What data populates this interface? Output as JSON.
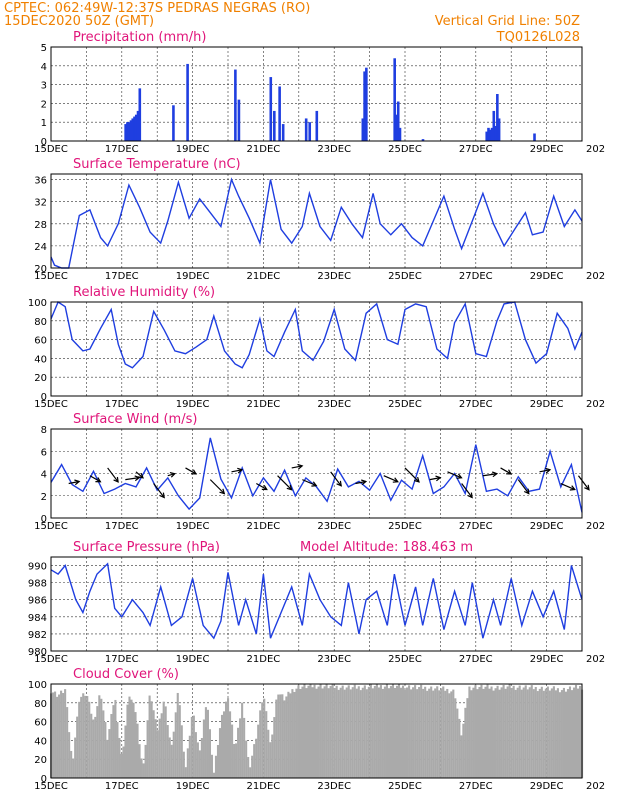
{
  "header": {
    "left1": "CPTEC:  062:49W-12:37S  PEDRAS NEGRAS (RO)",
    "left2": "15DEC2020 50Z (GMT)",
    "right1": "Vertical Grid Line: 50Z",
    "right2": "TQ0126L028"
  },
  "colors": {
    "header": "#f08000",
    "title": "#e0157a",
    "series": "#1f3ee0",
    "cloud": "#aaaaaa",
    "arrow": "#000000"
  },
  "x_axis": {
    "start_day": 15,
    "end_day": 30,
    "tick_labels": [
      "15DEC",
      "17DEC",
      "19DEC",
      "21DEC",
      "23DEC",
      "25DEC",
      "27DEC",
      "29DEC"
    ],
    "tick_days": [
      15,
      17,
      19,
      21,
      23,
      25,
      27,
      29
    ],
    "overlap_label": "202"
  },
  "chart_data": [
    {
      "type": "bar",
      "title": "Precipitation (mm/h)",
      "ylim": [
        0,
        5
      ],
      "yticks": [
        0,
        1,
        2,
        3,
        4,
        5
      ],
      "grid": true,
      "x": [
        17.1,
        17.15,
        17.2,
        17.25,
        17.3,
        17.35,
        17.4,
        17.45,
        17.5,
        18.45,
        18.85,
        20.2,
        20.3,
        21.2,
        21.3,
        21.45,
        21.55,
        22.2,
        22.3,
        22.5,
        23.8,
        23.85,
        23.9,
        24.7,
        24.75,
        24.8,
        24.85,
        25.5,
        27.3,
        27.35,
        27.4,
        27.45,
        27.5,
        27.55,
        27.6,
        27.65,
        28.65
      ],
      "values": [
        0.9,
        1.0,
        1.0,
        1.1,
        1.2,
        1.3,
        1.4,
        1.6,
        2.8,
        1.9,
        4.1,
        3.8,
        2.2,
        3.4,
        1.6,
        2.9,
        0.9,
        1.2,
        1.0,
        1.6,
        1.2,
        3.7,
        3.9,
        4.4,
        1.4,
        2.1,
        0.7,
        0.1,
        0.5,
        0.7,
        0.6,
        0.7,
        1.6,
        0.8,
        2.5,
        1.2,
        0.4
      ]
    },
    {
      "type": "line",
      "title": "Surface Temperature (nC)",
      "ylim": [
        20,
        37
      ],
      "yticks": [
        20,
        24,
        28,
        32,
        36
      ],
      "grid": true,
      "x": [
        15,
        15.1,
        15.3,
        15.5,
        15.8,
        16.1,
        16.4,
        16.6,
        16.9,
        17.2,
        17.5,
        17.8,
        18.1,
        18.3,
        18.6,
        18.9,
        19.2,
        19.5,
        19.8,
        20.1,
        20.3,
        20.6,
        20.9,
        21.2,
        21.5,
        21.8,
        22.1,
        22.3,
        22.6,
        22.9,
        23.2,
        23.5,
        23.8,
        24.1,
        24.3,
        24.6,
        24.9,
        25.2,
        25.5,
        25.8,
        26.1,
        26.4,
        26.6,
        26.9,
        27.2,
        27.5,
        27.8,
        28.1,
        28.4,
        28.6,
        28.9,
        29.2,
        29.5,
        29.8,
        30
      ],
      "values": [
        22,
        20.5,
        20,
        20,
        29.5,
        30.5,
        25.5,
        24,
        28,
        35,
        31,
        26.5,
        24.5,
        28.5,
        35.5,
        29,
        32.5,
        30,
        27.5,
        36,
        33,
        29,
        24.5,
        36,
        27,
        24.5,
        27.5,
        33.5,
        27.5,
        25,
        31,
        28,
        25.5,
        33.5,
        28,
        26,
        28,
        25.5,
        24,
        28.5,
        33,
        27,
        23.5,
        28.5,
        33.5,
        28,
        24,
        27,
        30,
        26,
        26.5,
        33,
        27.5,
        30.5,
        28.5
      ]
    },
    {
      "type": "line",
      "title": "Relative Humidity (%)",
      "ylim": [
        0,
        100
      ],
      "yticks": [
        0,
        20,
        40,
        60,
        80,
        100
      ],
      "grid": true,
      "x": [
        15,
        15.2,
        15.4,
        15.6,
        15.9,
        16.1,
        16.4,
        16.7,
        16.9,
        17.1,
        17.3,
        17.6,
        17.9,
        18.2,
        18.5,
        18.8,
        19.1,
        19.4,
        19.6,
        19.9,
        20.2,
        20.4,
        20.6,
        20.9,
        21.1,
        21.3,
        21.6,
        21.9,
        22.1,
        22.4,
        22.7,
        23.0,
        23.3,
        23.6,
        23.9,
        24.2,
        24.5,
        24.8,
        25.0,
        25.3,
        25.6,
        25.9,
        26.2,
        26.4,
        26.7,
        27.0,
        27.3,
        27.6,
        27.8,
        28.1,
        28.4,
        28.7,
        29.0,
        29.3,
        29.6,
        29.8,
        30
      ],
      "values": [
        82,
        100,
        95,
        60,
        48,
        50,
        72,
        92,
        55,
        34,
        30,
        42,
        90,
        70,
        48,
        45,
        52,
        60,
        85,
        48,
        34,
        30,
        44,
        82,
        48,
        42,
        68,
        92,
        48,
        38,
        58,
        92,
        50,
        38,
        88,
        98,
        60,
        55,
        92,
        98,
        95,
        50,
        40,
        78,
        98,
        45,
        42,
        80,
        98,
        100,
        60,
        35,
        45,
        88,
        72,
        50,
        68
      ]
    },
    {
      "type": "line",
      "title": "Surface Wind (m/s)",
      "ylim": [
        0,
        8
      ],
      "yticks": [
        0,
        2,
        4,
        6,
        8
      ],
      "grid": true,
      "x": [
        15,
        15.3,
        15.6,
        15.9,
        16.2,
        16.5,
        16.8,
        17.1,
        17.4,
        17.7,
        18.0,
        18.3,
        18.6,
        18.9,
        19.2,
        19.5,
        19.8,
        20.1,
        20.4,
        20.7,
        21.0,
        21.3,
        21.6,
        21.9,
        22.2,
        22.5,
        22.8,
        23.1,
        23.4,
        23.7,
        24.0,
        24.3,
        24.6,
        24.9,
        25.2,
        25.5,
        25.8,
        26.1,
        26.4,
        26.7,
        27.0,
        27.3,
        27.6,
        27.9,
        28.2,
        28.5,
        28.8,
        29.1,
        29.4,
        29.7,
        30
      ],
      "values": [
        3.2,
        4.8,
        3,
        2.4,
        4.2,
        2.2,
        2.6,
        3.1,
        2.8,
        4.5,
        2.5,
        3.6,
        2,
        0.8,
        1.8,
        7.2,
        3.5,
        1.8,
        4.5,
        2,
        3.6,
        2.4,
        4.3,
        2,
        3.6,
        2.8,
        1.5,
        4.4,
        2.8,
        3.3,
        2.5,
        4,
        1.6,
        3.4,
        2.6,
        5.6,
        2.2,
        2.8,
        4,
        2.2,
        6.6,
        2.4,
        2.6,
        2,
        3.7,
        2.4,
        2.6,
        6,
        2.8,
        4.8,
        0.5
      ],
      "arrows": [
        [
          15.5,
          15.8
        ],
        [
          16.1,
          16.4
        ],
        [
          16.6,
          16.9
        ],
        [
          17.1,
          17.5
        ],
        [
          17.4,
          17.6
        ],
        [
          17.9,
          18.2
        ],
        [
          18.3,
          18.5
        ],
        [
          18.8,
          19.1
        ],
        [
          19.5,
          19.9
        ],
        [
          20.1,
          20.4
        ],
        [
          20.8,
          21.1
        ],
        [
          21.4,
          21.8
        ],
        [
          21.8,
          22.1
        ],
        [
          22.1,
          22.5
        ],
        [
          22.9,
          23.2
        ],
        [
          23.6,
          23.9
        ],
        [
          24.4,
          24.8
        ],
        [
          25,
          25.4
        ],
        [
          25.7,
          26
        ],
        [
          26.2,
          26.6
        ],
        [
          26.6,
          26.9
        ],
        [
          27.2,
          27.6
        ],
        [
          27.7,
          28
        ],
        [
          28.2,
          28.5
        ],
        [
          28.8,
          29.1
        ],
        [
          29.4,
          29.8
        ],
        [
          29.9,
          30.2
        ]
      ]
    },
    {
      "type": "line",
      "title": "Surface Pressure (hPa)",
      "annotation": "Model Altitude: 188.463  m",
      "ylim": [
        980,
        991
      ],
      "yticks": [
        980,
        982,
        984,
        986,
        988,
        990
      ],
      "grid": true,
      "x": [
        15,
        15.2,
        15.4,
        15.7,
        15.9,
        16.1,
        16.3,
        16.6,
        16.8,
        17.0,
        17.3,
        17.6,
        17.8,
        18.1,
        18.4,
        18.7,
        19.0,
        19.3,
        19.6,
        19.8,
        20.0,
        20.3,
        20.5,
        20.8,
        21.0,
        21.2,
        21.5,
        21.8,
        22.1,
        22.3,
        22.6,
        22.9,
        23.2,
        23.4,
        23.7,
        23.9,
        24.2,
        24.5,
        24.7,
        25.0,
        25.3,
        25.5,
        25.8,
        26.1,
        26.4,
        26.7,
        26.9,
        27.2,
        27.5,
        27.7,
        28.0,
        28.3,
        28.6,
        28.9,
        29.2,
        29.5,
        29.7,
        30
      ],
      "values": [
        989.5,
        989,
        990,
        986,
        984.5,
        987,
        989,
        990.2,
        985,
        984,
        986,
        984.5,
        983,
        987.5,
        983,
        984,
        988.5,
        983,
        981.5,
        983.5,
        989.2,
        983,
        986,
        982,
        989,
        981.5,
        984.5,
        987.5,
        983,
        989,
        986,
        984,
        983,
        988,
        982,
        986,
        987,
        983,
        989,
        983,
        987.5,
        983,
        988.5,
        982.5,
        987,
        983,
        988,
        981.5,
        986,
        983,
        988.5,
        983,
        987,
        984,
        987,
        982.5,
        990,
        986
      ]
    },
    {
      "type": "area",
      "title": "Cloud Cover (%)",
      "ylim": [
        0,
        100
      ],
      "yticks": [
        0,
        20,
        40,
        60,
        80,
        100
      ],
      "grid": true,
      "x": [
        15,
        15.2,
        15.4,
        15.6,
        15.8,
        16.0,
        16.2,
        16.4,
        16.6,
        16.8,
        17.0,
        17.2,
        17.4,
        17.6,
        17.8,
        18.0,
        18.2,
        18.4,
        18.6,
        18.8,
        19.0,
        19.2,
        19.4,
        19.6,
        19.8,
        20.0,
        20.2,
        20.4,
        20.6,
        20.8,
        21.0,
        21.2,
        21.4,
        21.6,
        21.8,
        22.0,
        22.5,
        23.0,
        23.5,
        24.0,
        24.5,
        25.0,
        25.5,
        26.0,
        26.4,
        26.6,
        26.8,
        27.0,
        27.5,
        28.0,
        28.5,
        29.0,
        29.5,
        30
      ],
      "values": [
        93,
        88,
        94,
        15,
        85,
        90,
        60,
        92,
        40,
        88,
        20,
        90,
        70,
        8,
        92,
        50,
        85,
        30,
        94,
        10,
        72,
        25,
        86,
        5,
        60,
        88,
        30,
        80,
        10,
        45,
        90,
        35,
        92,
        84,
        93,
        97,
        98,
        97,
        96,
        97,
        98,
        97,
        96,
        95,
        92,
        45,
        96,
        97,
        96,
        97,
        96,
        95,
        94,
        97
      ]
    }
  ]
}
